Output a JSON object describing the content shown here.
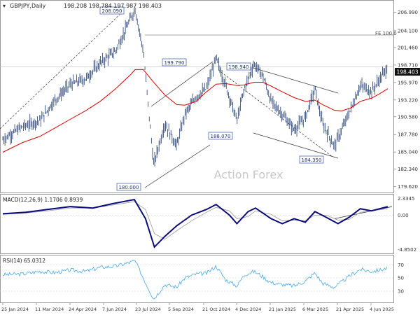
{
  "header": {
    "symbol_line": "GBPJPY,Daily",
    "ohlc": "198.208 198.784 197.987 198.403"
  },
  "watermark": "Action Forex",
  "price_panel": {
    "yticks": [
      "206.990",
      "204.100",
      "201.460",
      "198.710",
      "195.970",
      "193.220",
      "190.580",
      "187.780",
      "185.040",
      "182.340",
      "179.620"
    ],
    "last_price": "198.403",
    "fe_label": "FE 100.0",
    "annotations": [
      "208.090",
      "199.790",
      "198.940",
      "188.070",
      "184.350",
      "180.000"
    ]
  },
  "macd_panel": {
    "label": "MACD(12,26,9) 1.1706 0.8939",
    "yticks": [
      "2.3345",
      "0.00",
      "-4.8502"
    ]
  },
  "rsi_panel": {
    "label": "RSI(14) 65.0312",
    "yticks": [
      "70",
      "50",
      "30"
    ]
  },
  "xaxis": {
    "labels": [
      "25 Jan 2024",
      "11 Mar 2024",
      "24 Apr 2024",
      "7 Jun 2024",
      "23 Jul 2024",
      "5 Sep 2024",
      "21 Oct 2024",
      "4 Dec 2024",
      "21 Jan 2025",
      "6 Mar 2025",
      "21 Apr 2025",
      "4 Jun 2025"
    ]
  },
  "colors": {
    "price": "#1f3b6e",
    "ma": "#e00000",
    "macd": "#0a0a7a",
    "signal": "#9a9a9a",
    "rsi": "#5ab0e8",
    "grid": "#d8d8d8",
    "trend": "#333333"
  },
  "chart_data": [
    {
      "type": "line",
      "panel": "price",
      "x": [
        "2024-01-15",
        "2024-02-10",
        "2024-03-05",
        "2024-03-25",
        "2024-04-15",
        "2024-05-05",
        "2024-05-25",
        "2024-06-15",
        "2024-07-05",
        "2024-07-11",
        "2024-07-22",
        "2024-08-05",
        "2024-08-20",
        "2024-09-05",
        "2024-09-16",
        "2024-10-01",
        "2024-10-15",
        "2024-10-28",
        "2024-11-10",
        "2024-11-25",
        "2024-12-05",
        "2024-12-18",
        "2024-12-30",
        "2025-01-10",
        "2025-01-25",
        "2025-02-10",
        "2025-02-25",
        "2025-03-10",
        "2025-03-20",
        "2025-04-05",
        "2025-04-15",
        "2025-04-28",
        "2025-05-10",
        "2025-05-25",
        "2025-06-05",
        "2025-06-16"
      ],
      "series": [
        {
          "name": "Price",
          "values": [
            187.0,
            189.0,
            190.0,
            193.2,
            195.7,
            196.5,
            199.0,
            201.0,
            206.0,
            207.5,
            201.0,
            183.0,
            189.5,
            186.0,
            191.0,
            193.7,
            195.0,
            199.8,
            195.5,
            190.0,
            195.0,
            198.9,
            197.0,
            193.0,
            191.0,
            188.5,
            190.5,
            195.0,
            189.5,
            186.0,
            188.5,
            192.0,
            195.5,
            194.5,
            196.5,
            198.4
          ]
        },
        {
          "name": "MA",
          "values": [
            185.0,
            186.5,
            187.5,
            188.8,
            190.2,
            191.5,
            193.0,
            195.0,
            197.2,
            198.0,
            198.0,
            196.0,
            194.0,
            192.5,
            192.4,
            193.0,
            194.5,
            195.7,
            195.8,
            195.5,
            195.6,
            196.0,
            196.0,
            195.4,
            194.5,
            193.6,
            193.0,
            193.2,
            192.5,
            191.6,
            191.5,
            192.0,
            193.0,
            193.5,
            194.2,
            195.0
          ]
        }
      ],
      "ylim": [
        179.0,
        208.5
      ]
    },
    {
      "type": "line",
      "panel": "macd",
      "x": [
        "2024-01-15",
        "2024-02-15",
        "2024-03-15",
        "2024-04-15",
        "2024-05-15",
        "2024-06-10",
        "2024-07-10",
        "2024-07-25",
        "2024-08-06",
        "2024-08-20",
        "2024-09-05",
        "2024-09-25",
        "2024-10-15",
        "2024-10-28",
        "2024-11-15",
        "2024-11-25",
        "2024-12-10",
        "2024-12-20",
        "2025-01-10",
        "2025-01-25",
        "2025-02-10",
        "2025-02-25",
        "2025-03-10",
        "2025-03-25",
        "2025-04-10",
        "2025-04-25",
        "2025-05-10",
        "2025-05-25",
        "2025-06-16"
      ],
      "series": [
        {
          "name": "MACD",
          "values": [
            0.2,
            0.4,
            0.8,
            1.2,
            1.0,
            1.6,
            2.2,
            -0.5,
            -4.5,
            -3.0,
            -1.5,
            0.0,
            0.8,
            1.5,
            0.0,
            -1.2,
            0.5,
            1.0,
            -0.5,
            -1.2,
            -0.5,
            -1.0,
            0.5,
            -0.3,
            -1.2,
            -0.3,
            0.9,
            0.6,
            1.2
          ]
        },
        {
          "name": "Signal",
          "values": [
            0.1,
            0.3,
            0.6,
            1.0,
            1.0,
            1.4,
            1.9,
            0.8,
            -2.6,
            -3.4,
            -2.2,
            -0.8,
            0.4,
            1.1,
            0.6,
            -0.5,
            -0.2,
            0.6,
            0.1,
            -0.8,
            -0.7,
            -0.8,
            0.0,
            0.0,
            -0.7,
            -0.6,
            0.4,
            0.6,
            0.9
          ]
        }
      ],
      "ylim": [
        -5.2,
        2.7
      ]
    },
    {
      "type": "line",
      "panel": "rsi",
      "x": [
        "2024-01-15",
        "2024-02-10",
        "2024-03-05",
        "2024-03-25",
        "2024-04-15",
        "2024-05-05",
        "2024-05-25",
        "2024-06-15",
        "2024-07-05",
        "2024-07-11",
        "2024-07-22",
        "2024-08-05",
        "2024-08-20",
        "2024-09-05",
        "2024-09-16",
        "2024-10-01",
        "2024-10-15",
        "2024-10-28",
        "2024-11-10",
        "2024-11-25",
        "2024-12-05",
        "2024-12-18",
        "2024-12-30",
        "2025-01-10",
        "2025-01-25",
        "2025-02-10",
        "2025-02-25",
        "2025-03-10",
        "2025-03-20",
        "2025-04-05",
        "2025-04-15",
        "2025-04-28",
        "2025-05-10",
        "2025-05-25",
        "2025-06-05",
        "2025-06-16"
      ],
      "series": [
        {
          "name": "RSI",
          "values": [
            55,
            56,
            60,
            58,
            62,
            60,
            66,
            68,
            74,
            76,
            50,
            18,
            40,
            36,
            50,
            56,
            57,
            68,
            47,
            38,
            55,
            60,
            52,
            43,
            40,
            38,
            45,
            58,
            42,
            36,
            44,
            55,
            63,
            60,
            62,
            65
          ]
        }
      ],
      "ylim": [
        15,
        82
      ]
    }
  ]
}
